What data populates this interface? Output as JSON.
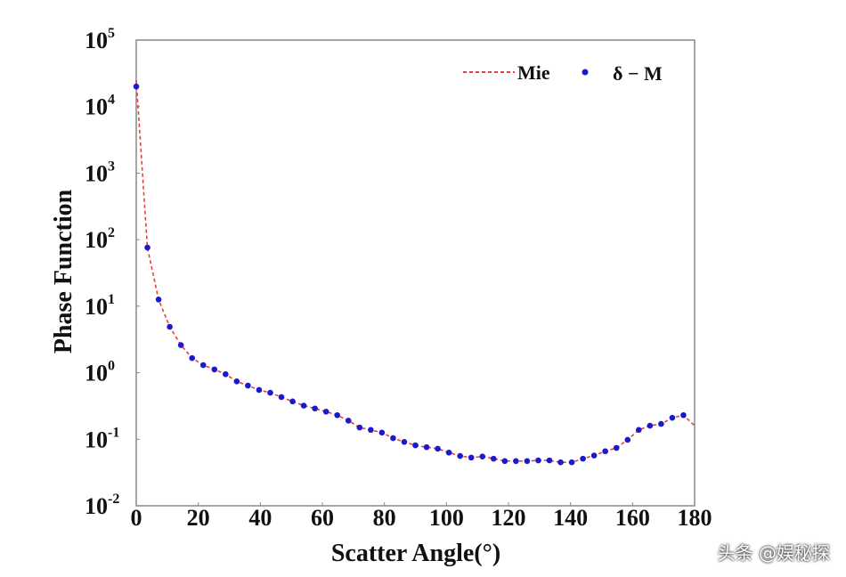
{
  "chart_data": {
    "type": "scatter",
    "title": "",
    "xlabel": "Scatter Angle(°)",
    "ylabel": "Phase Function",
    "xlim": [
      0,
      180
    ],
    "ylim": [
      0.01,
      100000
    ],
    "yscale": "log",
    "xticks": [
      "0",
      "20",
      "40",
      "60",
      "80",
      "100",
      "120",
      "140",
      "160",
      "180"
    ],
    "yticks": [
      {
        "base": "10",
        "exp": "5"
      },
      {
        "base": "10",
        "exp": "4"
      },
      {
        "base": "10",
        "exp": "3"
      },
      {
        "base": "10",
        "exp": "2"
      },
      {
        "base": "10",
        "exp": "1"
      },
      {
        "base": "10",
        "exp": "0"
      },
      {
        "base": "10",
        "exp": "-1"
      },
      {
        "base": "10",
        "exp": "-2"
      }
    ],
    "grid": false,
    "legend_position": "top-right",
    "series": [
      {
        "name": "Mie",
        "style": "dashed-line",
        "color": "#e8403c",
        "x": [
          0,
          3.6,
          7.2,
          10.8,
          14.4,
          18,
          21.6,
          25.2,
          28.8,
          32.4,
          36,
          39.6,
          43.2,
          46.8,
          50.4,
          54,
          57.6,
          61.2,
          64.8,
          68.4,
          72,
          75.6,
          79.2,
          82.8,
          86.4,
          90,
          93.6,
          97.2,
          100.8,
          104.4,
          108,
          111.6,
          115.2,
          118.8,
          122.4,
          126,
          129.6,
          133.2,
          136.8,
          140.4,
          144,
          147.6,
          151.2,
          154.8,
          158.4,
          162,
          165.6,
          169.2,
          172.8,
          176.4,
          180
        ],
        "y": [
          25000,
          76,
          12.6,
          4.9,
          2.6,
          1.66,
          1.3,
          1.12,
          0.95,
          0.74,
          0.64,
          0.55,
          0.5,
          0.43,
          0.37,
          0.32,
          0.29,
          0.26,
          0.23,
          0.19,
          0.15,
          0.138,
          0.126,
          0.104,
          0.091,
          0.081,
          0.076,
          0.072,
          0.063,
          0.056,
          0.053,
          0.055,
          0.051,
          0.047,
          0.047,
          0.047,
          0.048,
          0.048,
          0.045,
          0.045,
          0.051,
          0.057,
          0.066,
          0.074,
          0.098,
          0.138,
          0.16,
          0.17,
          0.21,
          0.23,
          0.16
        ]
      },
      {
        "name": "δ − M",
        "style": "dots",
        "color": "#1a1acc",
        "x": [
          0,
          3.6,
          7.2,
          10.8,
          14.4,
          18,
          21.6,
          25.2,
          28.8,
          32.4,
          36,
          39.6,
          43.2,
          46.8,
          50.4,
          54,
          57.6,
          61.2,
          64.8,
          68.4,
          72,
          75.6,
          79.2,
          82.8,
          86.4,
          90,
          93.6,
          97.2,
          100.8,
          104.4,
          108,
          111.6,
          115.2,
          118.8,
          122.4,
          126,
          129.6,
          133.2,
          136.8,
          140.4,
          144,
          147.6,
          151.2,
          154.8,
          158.4,
          162,
          165.6,
          169.2,
          172.8,
          176.4
        ],
        "y": [
          20000,
          76,
          12.6,
          4.9,
          2.6,
          1.66,
          1.3,
          1.12,
          0.95,
          0.74,
          0.64,
          0.55,
          0.5,
          0.43,
          0.37,
          0.32,
          0.29,
          0.26,
          0.23,
          0.19,
          0.15,
          0.138,
          0.126,
          0.104,
          0.091,
          0.081,
          0.076,
          0.072,
          0.063,
          0.056,
          0.053,
          0.055,
          0.051,
          0.047,
          0.047,
          0.047,
          0.048,
          0.048,
          0.045,
          0.045,
          0.051,
          0.057,
          0.066,
          0.074,
          0.098,
          0.138,
          0.16,
          0.17,
          0.21,
          0.23
        ]
      }
    ]
  },
  "watermark": "头条 @娱秘探"
}
